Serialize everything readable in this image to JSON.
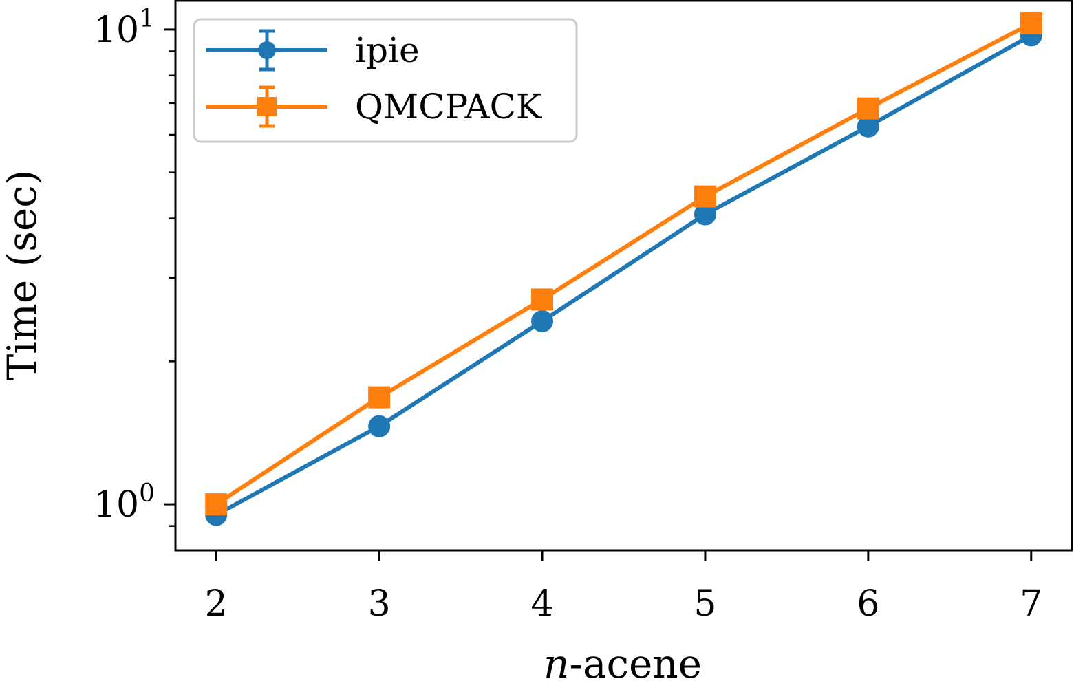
{
  "chart_data": {
    "type": "line",
    "title": "",
    "xlabel_italic": "n",
    "xlabel_rest": "-acene",
    "ylabel": "Time (sec)",
    "yscale": "log",
    "x": [
      2,
      3,
      4,
      5,
      6,
      7
    ],
    "xticks": [
      "2",
      "3",
      "4",
      "5",
      "6",
      "7"
    ],
    "yticks": [
      {
        "value": 1,
        "base": "10",
        "exp": "0"
      },
      {
        "value": 10,
        "base": "10",
        "exp": "1"
      }
    ],
    "xlim": [
      1.75,
      7.25
    ],
    "ylim": [
      0.8,
      11.5
    ],
    "grid": false,
    "legend": "top-left",
    "series": [
      {
        "name": "ipie",
        "color": "#1f77b4",
        "marker": "circle",
        "values": [
          0.95,
          1.46,
          2.43,
          4.08,
          6.25,
          9.72
        ]
      },
      {
        "name": "QMCPACK",
        "color": "#ff7f0e",
        "marker": "square",
        "values": [
          1.0,
          1.68,
          2.7,
          4.45,
          6.82,
          10.3
        ]
      }
    ]
  }
}
